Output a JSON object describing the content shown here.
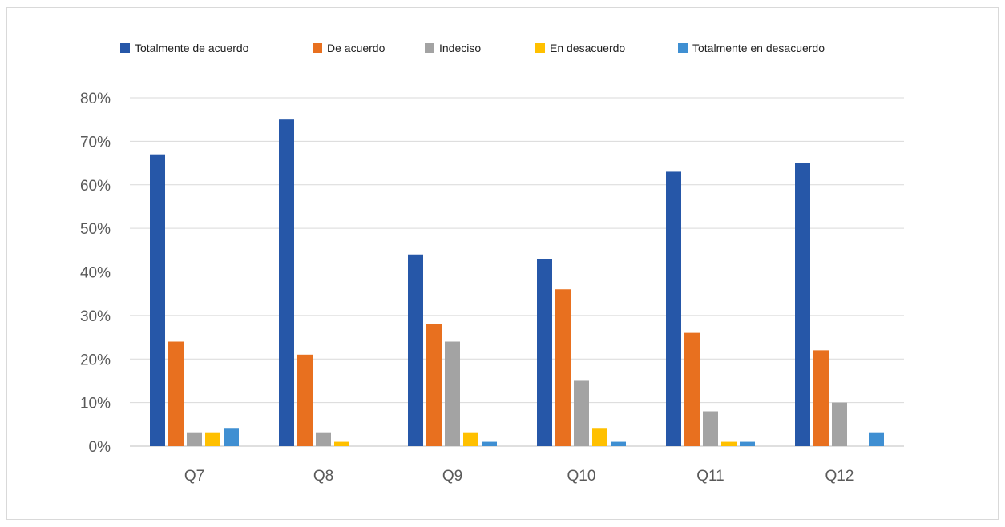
{
  "chart_data": {
    "type": "bar",
    "categories": [
      "Q7",
      "Q8",
      "Q9",
      "Q10",
      "Q11",
      "Q12"
    ],
    "series": [
      {
        "name": "Totalmente de acuerdo",
        "color": "#2657a8",
        "values": [
          67,
          75,
          44,
          43,
          63,
          65
        ]
      },
      {
        "name": "De acuerdo",
        "color": "#e8701f",
        "values": [
          24,
          21,
          28,
          36,
          26,
          22
        ]
      },
      {
        "name": "Indeciso",
        "color": "#a3a3a3",
        "values": [
          3,
          3,
          24,
          15,
          8,
          10
        ]
      },
      {
        "name": "En desacuerdo",
        "color": "#ffc000",
        "values": [
          3,
          1,
          3,
          4,
          1,
          0
        ]
      },
      {
        "name": "Totalmente en desacuerdo",
        "color": "#3f8fd2",
        "values": [
          4,
          0,
          1,
          1,
          1,
          3
        ]
      }
    ],
    "yticks": [
      "0%",
      "10%",
      "20%",
      "30%",
      "40%",
      "50%",
      "60%",
      "70%",
      "80%"
    ],
    "ylim": [
      0,
      80
    ],
    "grid": true,
    "legend_position": "top"
  }
}
